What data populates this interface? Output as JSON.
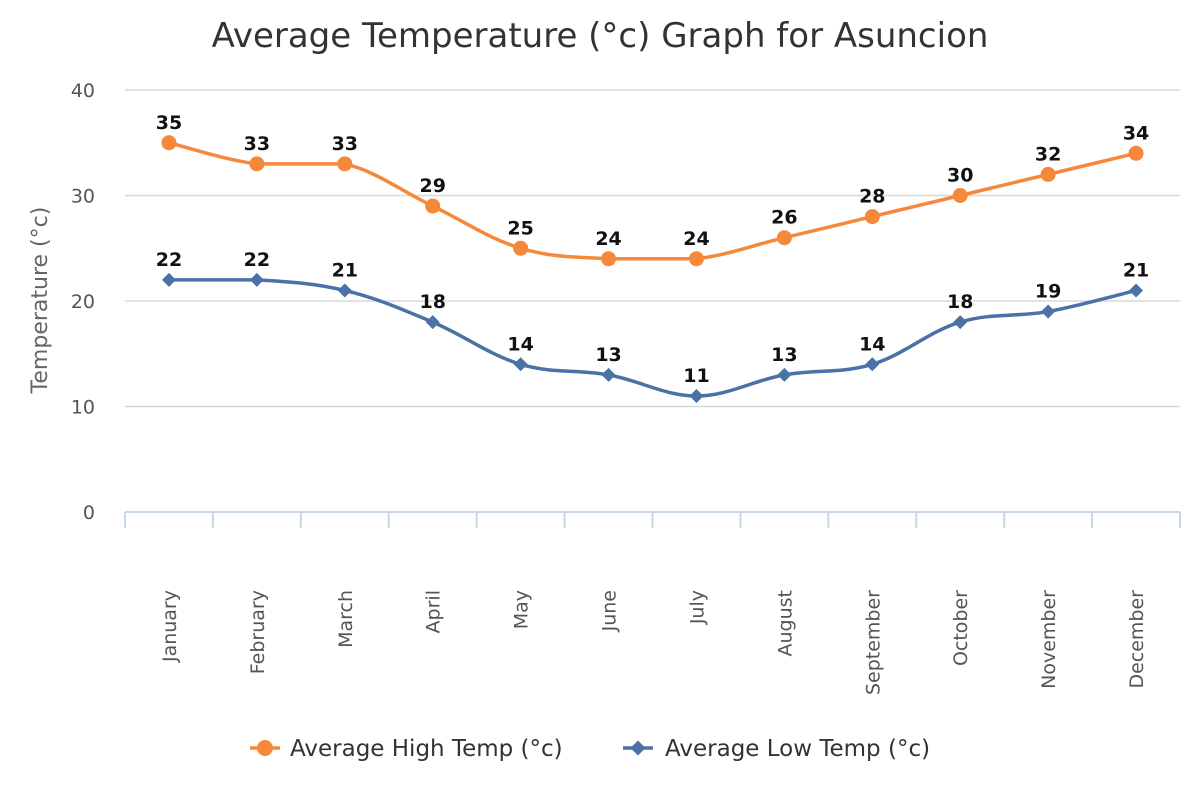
{
  "chart_data": {
    "type": "line",
    "title": "Average Temperature (°c) Graph for Asuncion",
    "ylabel": "Temperature (°c)",
    "xlabel": "",
    "ylim": [
      0,
      40
    ],
    "yticks": [
      0,
      10,
      20,
      30,
      40
    ],
    "grid": "horizontal",
    "legend_position": "bottom",
    "categories": [
      "January",
      "February",
      "March",
      "April",
      "May",
      "June",
      "July",
      "August",
      "September",
      "October",
      "November",
      "December"
    ],
    "series": [
      {
        "name": "Average High Temp (°c)",
        "color": "#F5883B",
        "marker": "circle",
        "values": [
          35,
          33,
          33,
          29,
          25,
          24,
          24,
          26,
          28,
          30,
          32,
          34
        ]
      },
      {
        "name": "Average Low Temp (°c)",
        "color": "#4A72A5",
        "marker": "diamond",
        "values": [
          22,
          22,
          21,
          18,
          14,
          13,
          11,
          13,
          14,
          18,
          19,
          21
        ]
      }
    ]
  }
}
